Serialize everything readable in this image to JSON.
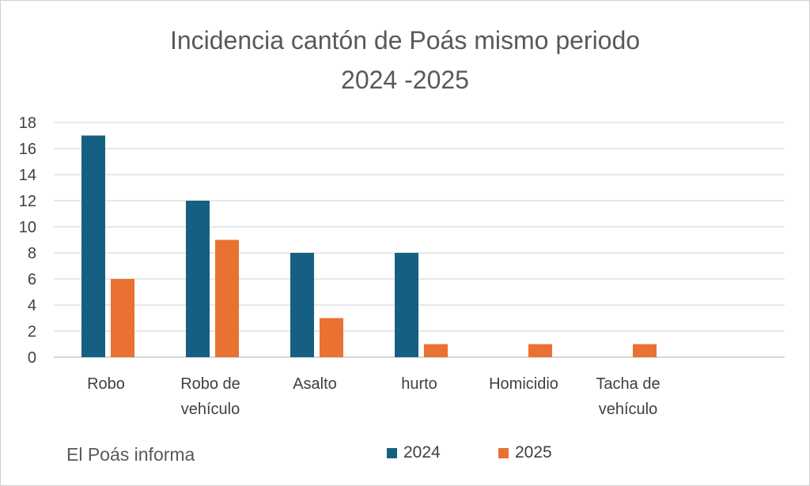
{
  "chart_data": {
    "type": "bar",
    "title_lines": [
      "Incidencia cantón de Poás mismo periodo",
      "2024 -2025"
    ],
    "categories": [
      [
        "Robo"
      ],
      [
        "Robo de",
        "vehículo"
      ],
      [
        "Asalto"
      ],
      [
        "hurto"
      ],
      [
        "Homicidio"
      ],
      [
        "Tacha de",
        "vehículo"
      ]
    ],
    "series": [
      {
        "name": "2024",
        "color": "#156082",
        "values": [
          17,
          12,
          8,
          8,
          0,
          0
        ]
      },
      {
        "name": "2025",
        "color": "#E97132",
        "values": [
          6,
          9,
          3,
          1,
          1,
          1
        ]
      }
    ],
    "ylim": [
      0,
      18
    ],
    "yticks": [
      0,
      2,
      4,
      6,
      8,
      10,
      12,
      14,
      16,
      18
    ],
    "grid": true,
    "legend_position": "bottom"
  },
  "footer": {
    "text": "El Poás informa"
  }
}
